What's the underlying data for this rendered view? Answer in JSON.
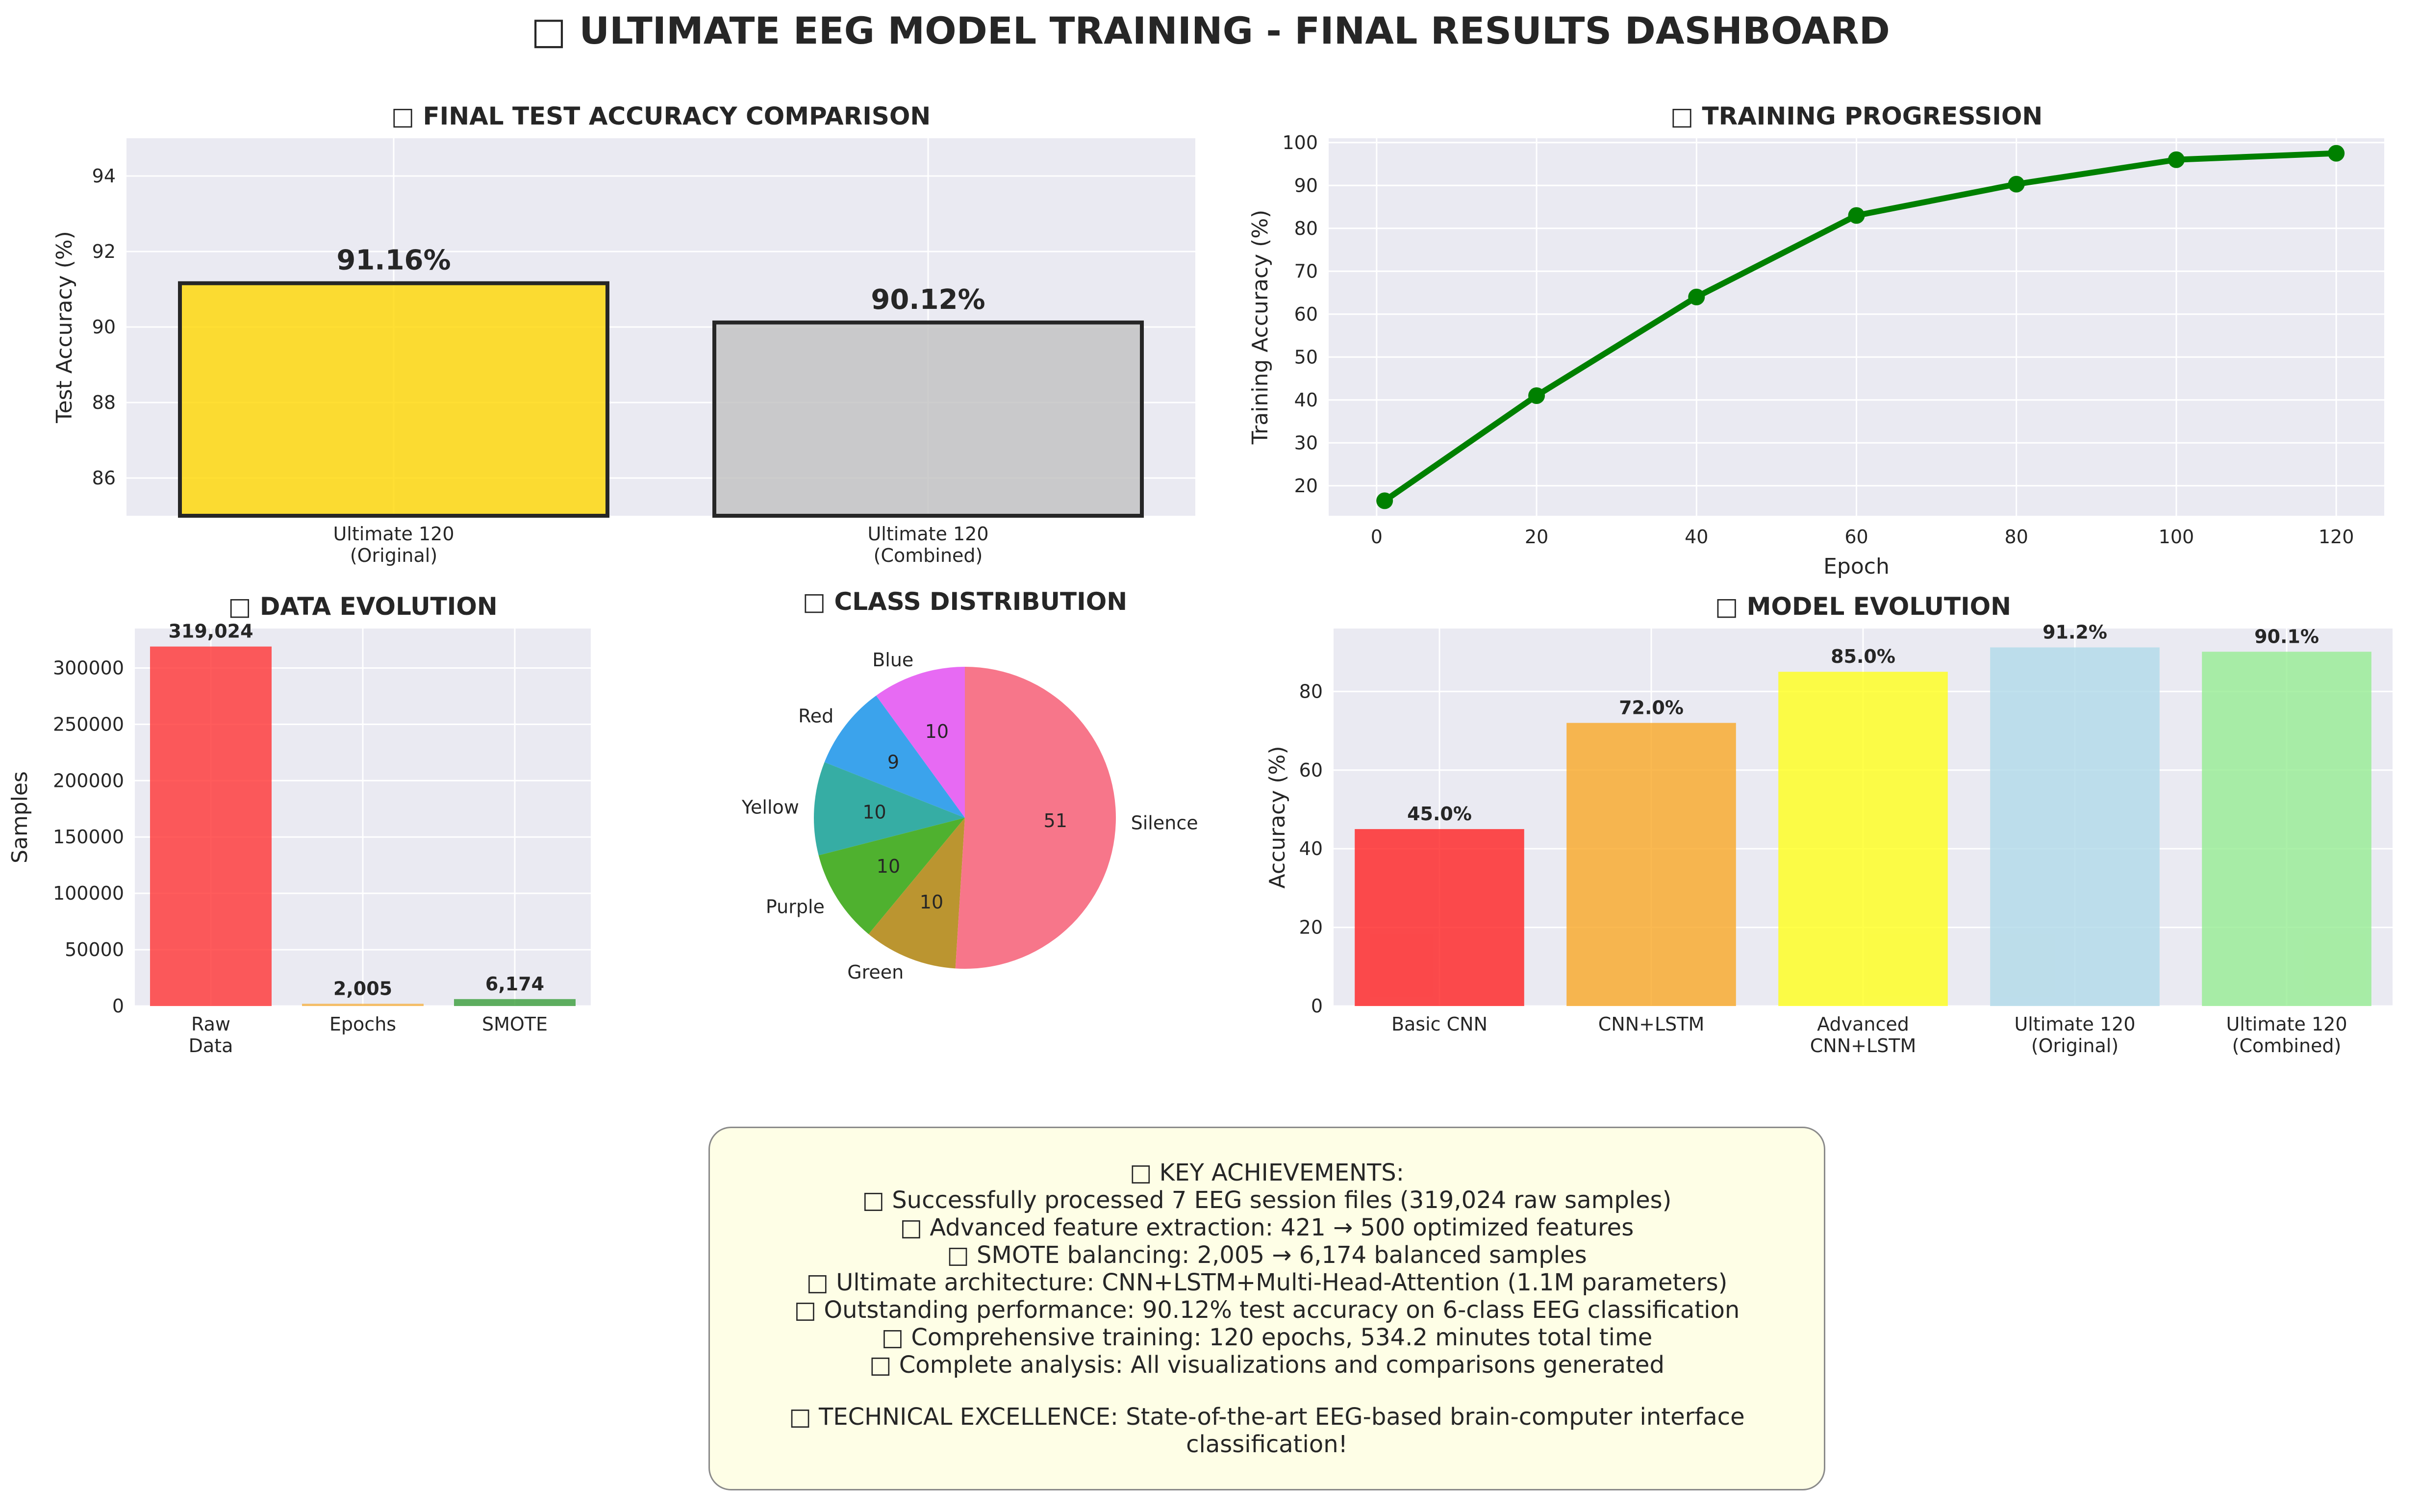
{
  "title": "□ ULTIMATE EEG MODEL TRAINING - FINAL RESULTS DASHBOARD",
  "colors": {
    "plot_bg": "#eaeaf2",
    "grid": "#ffffff",
    "text": "#262626"
  },
  "chart_data": [
    {
      "type": "bar",
      "title": "□ FINAL TEST ACCURACY COMPARISON",
      "categories": [
        [
          "Ultimate 120",
          "(Original)"
        ],
        [
          "Ultimate 120",
          "(Combined)"
        ]
      ],
      "values": [
        91.16,
        90.12
      ],
      "value_labels": [
        "91.16%",
        "90.12%"
      ],
      "colors": [
        "#ffd700",
        "#c0c0c0"
      ],
      "edge_color": "#262626",
      "xlabel": "",
      "ylabel": "Test Accuracy (%)",
      "ylim": [
        85,
        95
      ],
      "yticks": [
        86,
        88,
        90,
        92,
        94
      ],
      "grid": true
    },
    {
      "type": "line",
      "title": "□ TRAINING PROGRESSION",
      "x": [
        1,
        20,
        40,
        60,
        80,
        100,
        120
      ],
      "y": [
        16.5,
        41,
        64,
        83,
        90.3,
        96,
        97.5
      ],
      "color": "#008000",
      "xlabel": "Epoch",
      "ylabel": "Training Accuracy (%)",
      "xlim": [
        -6,
        126
      ],
      "ylim": [
        13,
        101
      ],
      "xticks": [
        0,
        20,
        40,
        60,
        80,
        100,
        120
      ],
      "yticks": [
        20,
        30,
        40,
        50,
        60,
        70,
        80,
        90,
        100
      ],
      "grid": true
    },
    {
      "type": "bar",
      "title": "□ DATA EVOLUTION",
      "categories": [
        [
          "Raw",
          "Data"
        ],
        [
          "Epochs"
        ],
        [
          "SMOTE"
        ]
      ],
      "values": [
        319024,
        2005,
        6174
      ],
      "value_labels": [
        "319,024",
        "2,005",
        "6,174"
      ],
      "colors": [
        "#ff3333",
        "#f5b041",
        "#3a9d3a"
      ],
      "xlabel": "",
      "ylabel": "Samples",
      "ylim": [
        0,
        335000
      ],
      "yticks": [
        0,
        50000,
        100000,
        150000,
        200000,
        250000,
        300000
      ],
      "grid": true
    },
    {
      "type": "pie",
      "title": "□ CLASS DISTRIBUTION",
      "labels": [
        "Blue",
        "Red",
        "Yellow",
        "Purple",
        "Green",
        "Silence"
      ],
      "values": [
        10,
        9,
        10,
        10,
        10,
        51
      ],
      "value_labels": [
        "10",
        "9",
        "10",
        "10",
        "10",
        "51"
      ],
      "colors": [
        "#e76af3",
        "#3ba3ec",
        "#36ada4",
        "#4fb12f",
        "#bb9530",
        "#f7768a"
      ]
    },
    {
      "type": "bar",
      "title": "□ MODEL EVOLUTION",
      "categories": [
        [
          "Basic CNN"
        ],
        [
          "CNN+LSTM"
        ],
        [
          "Advanced",
          "CNN+LSTM"
        ],
        [
          "Ultimate 120",
          "(Original)"
        ],
        [
          "Ultimate 120",
          "(Combined)"
        ]
      ],
      "values": [
        45.0,
        72.0,
        85.0,
        91.2,
        90.1
      ],
      "value_labels": [
        "45.0%",
        "72.0%",
        "85.0%",
        "91.2%",
        "90.1%"
      ],
      "colors": [
        "#ff2020",
        "#f9a825",
        "#ffff1a",
        "#b0dae8",
        "#96ec92"
      ],
      "xlabel": "",
      "ylabel": "Accuracy (%)",
      "ylim": [
        0,
        96
      ],
      "yticks": [
        0,
        20,
        40,
        60,
        80
      ],
      "grid": true
    }
  ],
  "summary": {
    "lines": [
      "□ KEY ACHIEVEMENTS:",
      "□ Successfully processed 7 EEG session files (319,024 raw samples)",
      "□ Advanced feature extraction: 421 → 500 optimized features",
      "□ SMOTE balancing: 2,005 → 6,174 balanced samples",
      "□ Ultimate architecture: CNN+LSTM+Multi-Head-Attention (1.1M parameters)",
      "□ Outstanding performance: 90.12% test accuracy on 6-class EEG classification",
      "□ Comprehensive training: 120 epochs, 534.2 minutes total time",
      "□ Complete analysis: All visualizations and comparisons generated"
    ],
    "footer": "□ TECHNICAL EXCELLENCE: State-of-the-art EEG-based brain-computer interface classification!"
  }
}
